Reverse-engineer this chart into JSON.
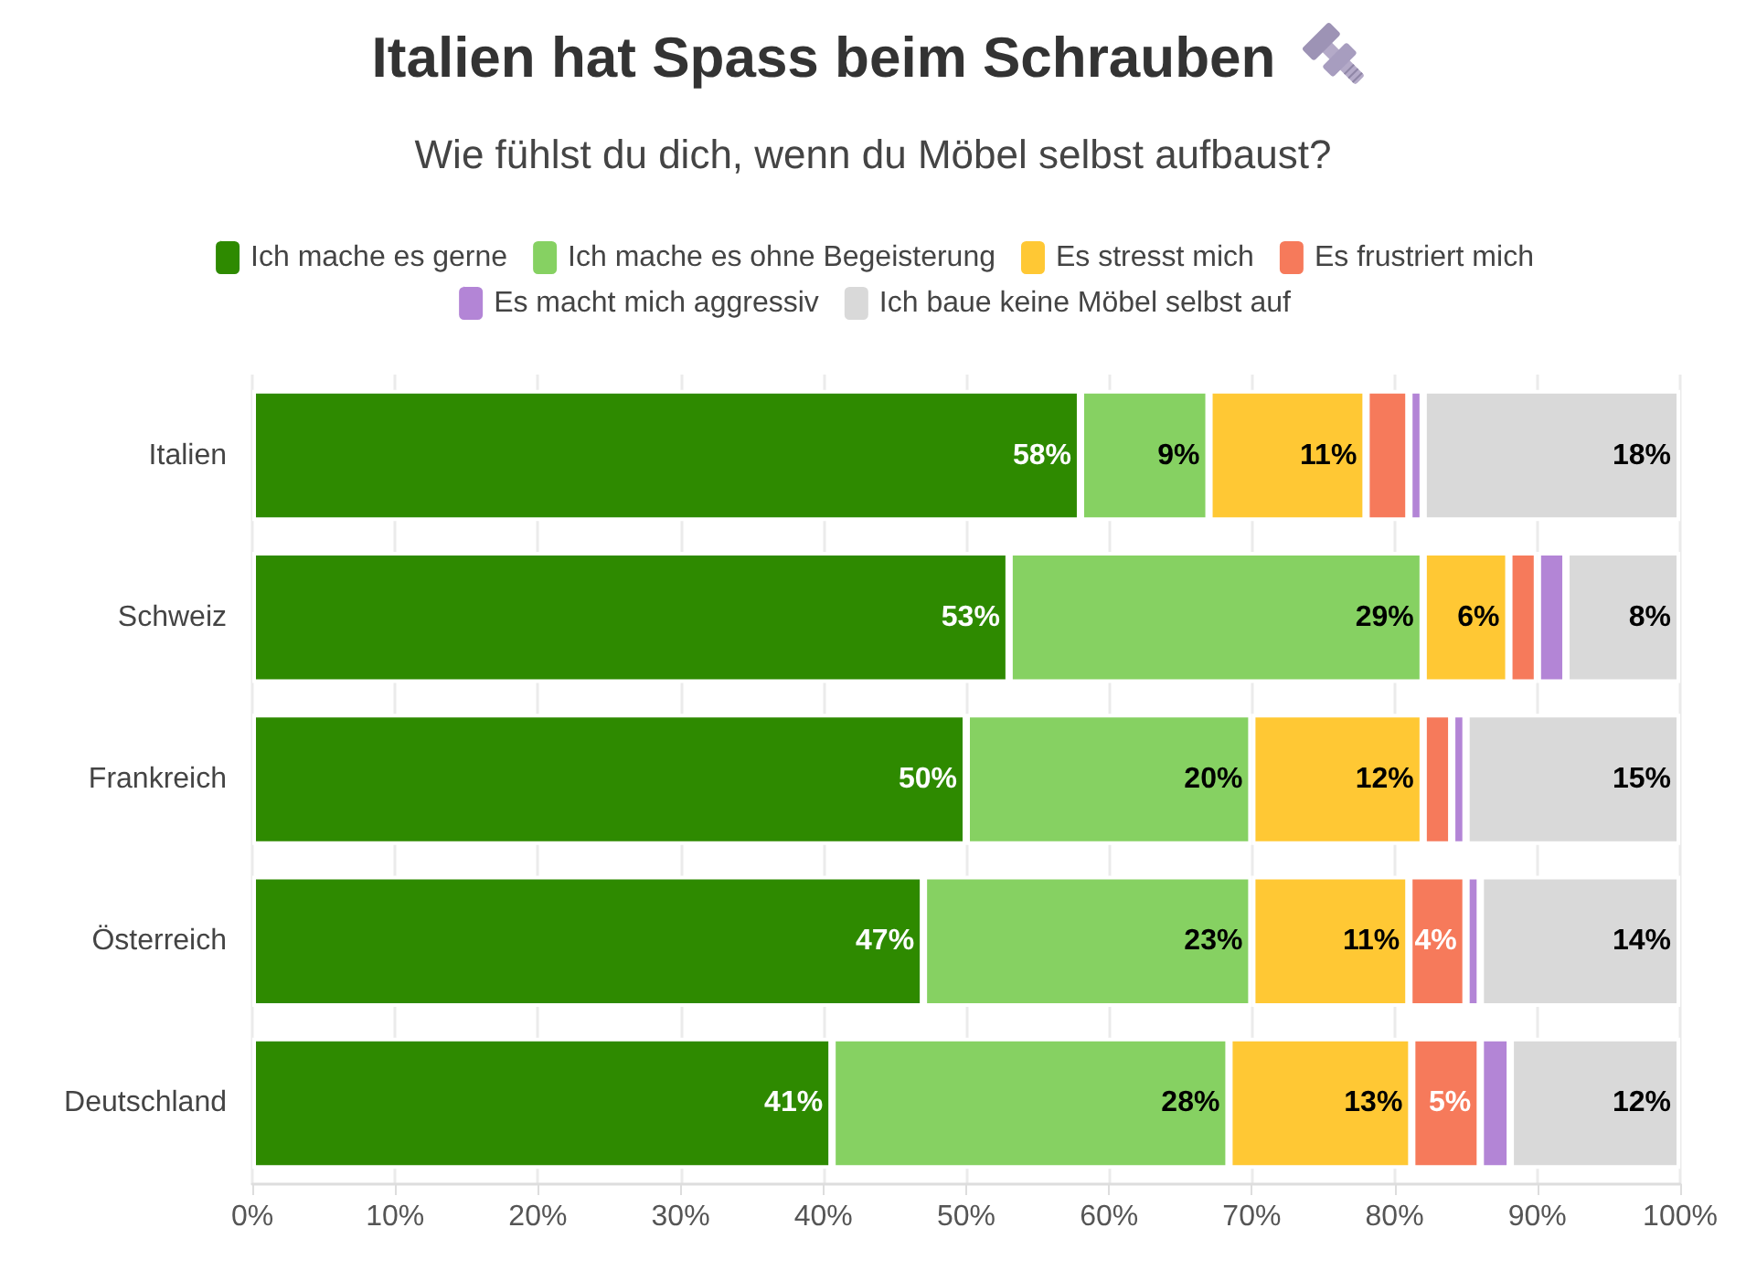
{
  "chart_data": {
    "type": "bar",
    "orientation": "horizontal",
    "stacked": true,
    "title": "Italien hat Spass beim Schrauben",
    "subtitle": "Wie fühlst du dich, wenn du Möbel selbst aufbaust?",
    "categories": [
      "Italien",
      "Schweiz",
      "Frankreich",
      "Österreich",
      "Deutschland"
    ],
    "series": [
      {
        "name": "Ich mache es gerne",
        "color": "#2e8a00",
        "values": [
          58,
          53,
          50,
          47,
          40.6
        ],
        "value_labels": [
          "58%",
          "53%",
          "50%",
          "47%",
          "41%"
        ]
      },
      {
        "name": "Ich mache es ohne Begeisterung",
        "color": "#86d162",
        "values": [
          9,
          29,
          20,
          23,
          27.8
        ],
        "value_labels": [
          "9%",
          "29%",
          "20%",
          "23%",
          "28%"
        ]
      },
      {
        "name": "Es stresst mich",
        "color": "#ffc834",
        "values": [
          11,
          6,
          12,
          11,
          12.8
        ],
        "value_labels": [
          "11%",
          "6%",
          "12%",
          "11%",
          "13%"
        ]
      },
      {
        "name": "Es frustriert mich",
        "color": "#f67a5b",
        "values": [
          3,
          2,
          2,
          4,
          4.8
        ],
        "value_labels": [
          null,
          null,
          null,
          "4%",
          "5%"
        ]
      },
      {
        "name": "Es macht mich aggressiv",
        "color": "#b385d6",
        "values": [
          1,
          2,
          1,
          1,
          2.1
        ]
      },
      {
        "name": "Ich baue keine Möbel selbst auf",
        "color": "#d9d9d9",
        "values": [
          18,
          8,
          15,
          14,
          11.9
        ],
        "value_labels": [
          "18%",
          "8%",
          "15%",
          "14%",
          "12%"
        ]
      }
    ],
    "xlim": [
      0,
      100
    ],
    "xticks": [
      {
        "value": 0,
        "label": "0%"
      },
      {
        "value": 10,
        "label": "10%"
      },
      {
        "value": 20,
        "label": "20%"
      },
      {
        "value": 30,
        "label": "30%"
      },
      {
        "value": 40,
        "label": "40%"
      },
      {
        "value": 50,
        "label": "50%"
      },
      {
        "value": 60,
        "label": "60%"
      },
      {
        "value": 70,
        "label": "70%"
      },
      {
        "value": 80,
        "label": "80%"
      },
      {
        "value": 90,
        "label": "90%"
      },
      {
        "value": 100,
        "label": "100%"
      }
    ],
    "grid": "x",
    "legend": "top"
  }
}
